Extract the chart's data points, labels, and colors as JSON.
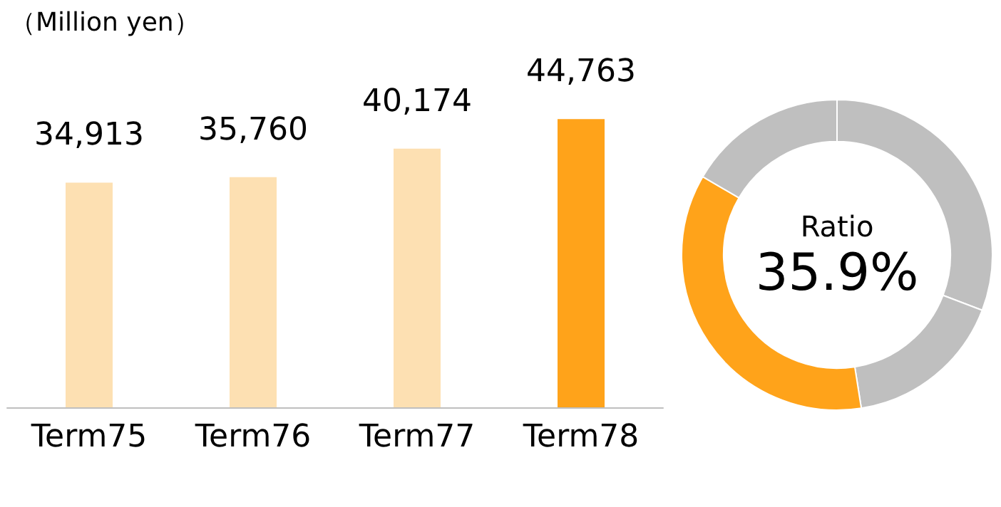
{
  "chart_data": [
    {
      "type": "bar",
      "ylabel": "（Million yen）",
      "categories": [
        "Term75",
        "Term76",
        "Term77",
        "Term78"
      ],
      "values": [
        34913,
        35760,
        40174,
        44763
      ],
      "value_labels": [
        "34,913",
        "35,760",
        "40,174",
        "44,763"
      ],
      "colors": [
        "#fde0b2",
        "#fde0b2",
        "#fde0b2",
        "#ffa31a"
      ],
      "tick_labels": "x"
    },
    {
      "type": "donut",
      "title": "Ratio",
      "categories": [
        null,
        null,
        null,
        null
      ],
      "values": [
        30.8,
        16.7,
        35.9,
        16.6
      ],
      "colors": [
        "#bfbfbf",
        "#bfbfbf",
        "#ffa31a",
        "#bfbfbf"
      ],
      "value_labels": [
        null,
        null,
        "35.9%",
        null
      ]
    }
  ]
}
